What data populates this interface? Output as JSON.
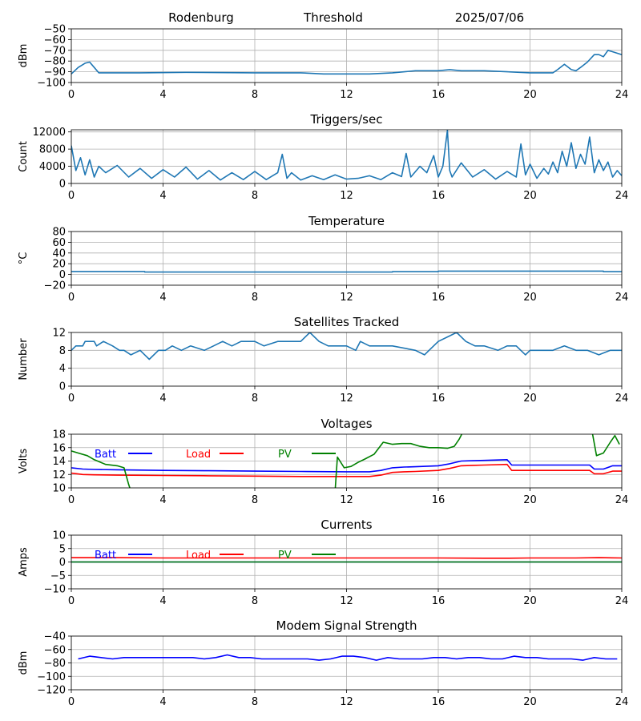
{
  "header": {
    "site": "Rodenburg",
    "mode": "Threshold",
    "date": "2025/07/06"
  },
  "colors": {
    "default_line": "#1f77b4",
    "batt": "#0000ff",
    "load": "#ff0000",
    "pv": "#008000",
    "grid": "#b0b0b0"
  },
  "chart_data": [
    {
      "id": "signal",
      "type": "line",
      "title": "",
      "ylabel": "dBm",
      "xlim": [
        0,
        24
      ],
      "ylim": [
        -100,
        -50
      ],
      "xticks": [
        0,
        4,
        8,
        12,
        16,
        20,
        24
      ],
      "xtick_labels": [
        "0",
        "4",
        "8",
        "12",
        "16",
        "20",
        "24"
      ],
      "yticks": [
        -100,
        -90,
        -80,
        -70,
        -60,
        -50
      ],
      "ytick_labels": [
        "−100",
        "−90",
        "−80",
        "−70",
        "−60",
        "−50"
      ],
      "grid": true,
      "series": [
        {
          "color": "#1f77b4",
          "x": [
            0,
            0.3,
            0.6,
            0.8,
            1.0,
            1.2,
            1.5,
            3,
            5,
            8,
            10,
            11,
            12,
            13,
            14,
            15,
            16,
            16.5,
            17,
            18,
            19,
            20,
            21,
            21.2,
            21.5,
            21.8,
            22,
            22.2,
            22.5,
            22.8,
            23.0,
            23.2,
            23.4,
            23.7,
            24
          ],
          "y": [
            -92,
            -86,
            -82,
            -81,
            -86,
            -91,
            -91,
            -91,
            -90.5,
            -91,
            -91,
            -92,
            -92,
            -92,
            -91,
            -89,
            -89,
            -88,
            -89,
            -89,
            -90,
            -91,
            -91,
            -88,
            -83,
            -88,
            -89,
            -86,
            -81,
            -74,
            -74,
            -76,
            -70,
            -72,
            -74
          ]
        }
      ]
    },
    {
      "id": "triggers",
      "type": "line",
      "title": "Triggers/sec",
      "ylabel": "Count",
      "xlim": [
        0,
        24
      ],
      "ylim": [
        0,
        12500
      ],
      "xticks": [
        0,
        4,
        8,
        12,
        16,
        20,
        24
      ],
      "xtick_labels": [
        "0",
        "4",
        "8",
        "12",
        "16",
        "20",
        "24"
      ],
      "yticks": [
        0,
        4000,
        8000,
        12000
      ],
      "ytick_labels": [
        "0",
        "4000",
        "8000",
        "12000"
      ],
      "grid": true,
      "series": [
        {
          "color": "#1f77b4",
          "x": [
            0,
            0.2,
            0.4,
            0.6,
            0.8,
            1.0,
            1.2,
            1.5,
            2,
            2.5,
            3,
            3.5,
            4,
            4.5,
            5,
            5.5,
            6,
            6.5,
            7,
            7.5,
            8,
            8.5,
            9,
            9.2,
            9.4,
            9.6,
            10,
            10.5,
            11,
            11.5,
            12,
            12.5,
            13,
            13.5,
            14,
            14.4,
            14.6,
            14.8,
            15.2,
            15.5,
            15.8,
            16,
            16.2,
            16.4,
            16.5,
            16.6,
            17,
            17.5,
            18,
            18.5,
            19,
            19.4,
            19.6,
            19.8,
            20,
            20.3,
            20.6,
            20.8,
            21,
            21.2,
            21.4,
            21.6,
            21.8,
            22.0,
            22.2,
            22.4,
            22.6,
            22.8,
            23.0,
            23.2,
            23.4,
            23.6,
            23.8,
            24
          ],
          "y": [
            8800,
            3000,
            6000,
            2000,
            5500,
            1500,
            4000,
            2500,
            4200,
            1500,
            3500,
            1200,
            3200,
            1500,
            3800,
            1000,
            3000,
            800,
            2500,
            900,
            2800,
            900,
            2500,
            6800,
            1200,
            2500,
            800,
            1800,
            900,
            2000,
            1000,
            1200,
            1800,
            900,
            2500,
            1600,
            7000,
            1500,
            4000,
            2500,
            6500,
            1500,
            4000,
            12400,
            3000,
            1500,
            4800,
            1500,
            3200,
            1000,
            2800,
            1500,
            9200,
            2000,
            4500,
            1200,
            3500,
            2200,
            5000,
            2500,
            7500,
            4000,
            9500,
            3500,
            6800,
            4500,
            10800,
            2500,
            5500,
            3000,
            5000,
            1500,
            3000,
            1800
          ]
        }
      ]
    },
    {
      "id": "temperature",
      "type": "line",
      "title": "Temperature",
      "ylabel": "°C",
      "xlim": [
        0,
        24
      ],
      "ylim": [
        -20,
        80
      ],
      "xticks": [
        0,
        4,
        8,
        12,
        16,
        20,
        24
      ],
      "xtick_labels": [
        "0",
        "4",
        "8",
        "12",
        "16",
        "20",
        "24"
      ],
      "yticks": [
        -20,
        0,
        20,
        40,
        60,
        80
      ],
      "ytick_labels": [
        "−20",
        "0",
        "20",
        "40",
        "60",
        "80"
      ],
      "grid": true,
      "series": [
        {
          "color": "#1f77b4",
          "x": [
            0,
            3.2,
            3.2,
            14,
            14,
            16,
            16,
            23.2,
            23.2,
            24
          ],
          "y": [
            5.5,
            5.5,
            4.5,
            4.5,
            5.2,
            5.2,
            6.2,
            6.2,
            5.2,
            5.2
          ]
        }
      ]
    },
    {
      "id": "satellites",
      "type": "line",
      "title": "Satellites Tracked",
      "ylabel": "Number",
      "xlim": [
        0,
        24
      ],
      "ylim": [
        0,
        12
      ],
      "xticks": [
        0,
        4,
        8,
        12,
        16,
        20,
        24
      ],
      "xtick_labels": [
        "0",
        "4",
        "8",
        "12",
        "16",
        "20",
        "24"
      ],
      "yticks": [
        0,
        4,
        8,
        12
      ],
      "ytick_labels": [
        "0",
        "4",
        "8",
        "12"
      ],
      "grid": true,
      "series": [
        {
          "color": "#1f77b4",
          "x": [
            0,
            0.2,
            0.5,
            0.6,
            1.0,
            1.1,
            1.4,
            1.8,
            2.1,
            2.3,
            2.6,
            3.0,
            3.2,
            3.4,
            3.8,
            4.1,
            4.4,
            4.8,
            5.2,
            5.8,
            6.2,
            6.6,
            7.0,
            7.4,
            8.0,
            8.4,
            9.0,
            9.6,
            10.0,
            10.4,
            10.8,
            11.2,
            11.6,
            12.0,
            12.4,
            12.6,
            13.0,
            13.6,
            14.0,
            15.0,
            15.4,
            15.6,
            16.0,
            16.4,
            16.8,
            17.2,
            17.6,
            18.0,
            18.6,
            19.0,
            19.4,
            19.8,
            20.0,
            20.5,
            21.0,
            21.5,
            22.0,
            22.5,
            23.0,
            23.5,
            24
          ],
          "y": [
            8,
            9,
            9,
            10,
            10,
            9,
            10,
            9,
            8,
            8,
            7,
            8,
            7,
            6,
            8,
            8,
            9,
            8,
            9,
            8,
            9,
            10,
            9,
            10,
            10,
            9,
            10,
            10,
            10,
            12,
            10,
            9,
            9,
            9,
            8,
            10,
            9,
            9,
            9,
            8,
            7,
            8,
            10,
            11,
            12,
            10,
            9,
            9,
            8,
            9,
            9,
            7,
            8,
            8,
            8,
            9,
            8,
            8,
            7,
            8,
            8
          ]
        }
      ]
    },
    {
      "id": "voltages",
      "type": "line",
      "title": "Voltages",
      "ylabel": "Volts",
      "xlim": [
        0,
        24
      ],
      "ylim": [
        10,
        18
      ],
      "xticks": [
        0,
        4,
        8,
        12,
        16,
        20,
        24
      ],
      "xtick_labels": [
        "0",
        "4",
        "8",
        "12",
        "16",
        "20",
        "24"
      ],
      "yticks": [
        10,
        12,
        14,
        16,
        18
      ],
      "ytick_labels": [
        "10",
        "12",
        "14",
        "16",
        "18"
      ],
      "grid": true,
      "legend": "top-left",
      "series": [
        {
          "name": "Batt",
          "color": "#0000ff",
          "x": [
            0,
            0.5,
            1,
            2,
            4,
            6,
            8,
            10,
            12,
            13,
            13.5,
            14,
            14.5,
            15,
            16,
            16.5,
            17,
            17.5,
            18,
            19,
            19.2,
            20,
            21,
            22,
            22.6,
            22.8,
            23.2,
            23.6,
            24
          ],
          "y": [
            13.0,
            12.8,
            12.75,
            12.7,
            12.6,
            12.55,
            12.5,
            12.45,
            12.4,
            12.4,
            12.6,
            13.0,
            13.1,
            13.15,
            13.3,
            13.6,
            14.0,
            14.05,
            14.1,
            14.2,
            13.4,
            13.4,
            13.4,
            13.4,
            13.4,
            12.8,
            12.8,
            13.3,
            13.3
          ]
        },
        {
          "name": "Load",
          "color": "#ff0000",
          "x": [
            0,
            0.5,
            1,
            2,
            4,
            6,
            8,
            10,
            12,
            13,
            13.5,
            14,
            14.5,
            15,
            16,
            16.5,
            17,
            17.5,
            18,
            19,
            19.2,
            20,
            21,
            22,
            22.6,
            22.8,
            23.2,
            23.6,
            24
          ],
          "y": [
            12.2,
            12.0,
            11.95,
            11.9,
            11.85,
            11.8,
            11.75,
            11.7,
            11.7,
            11.7,
            11.9,
            12.3,
            12.4,
            12.45,
            12.6,
            12.9,
            13.3,
            13.35,
            13.4,
            13.5,
            12.6,
            12.6,
            12.6,
            12.6,
            12.6,
            12.1,
            12.1,
            12.5,
            12.5
          ]
        },
        {
          "name": "PV",
          "color": "#008000",
          "x": [
            0,
            0.3,
            0.7,
            1.0,
            1.5,
            2.0,
            2.3,
            2.5,
            2.6,
            11.5,
            11.6,
            11.9,
            12.2,
            12.5,
            12.8,
            13.2,
            13.6,
            14.0,
            14.4,
            14.8,
            15.2,
            15.6,
            16.0,
            16.4,
            16.7,
            16.9,
            17.1,
            22.7,
            22.9,
            23.2,
            23.5,
            23.7,
            23.9
          ],
          "y": [
            15.5,
            15.2,
            14.8,
            14.2,
            13.5,
            13.3,
            13.0,
            10.5,
            9.5,
            9.5,
            14.6,
            13.0,
            13.2,
            13.8,
            14.3,
            15.0,
            16.8,
            16.5,
            16.6,
            16.6,
            16.2,
            16.0,
            16.0,
            15.9,
            16.2,
            17.2,
            18.5,
            18.5,
            14.8,
            15.2,
            16.8,
            17.8,
            16.5
          ]
        }
      ]
    },
    {
      "id": "currents",
      "type": "line",
      "title": "Currents",
      "ylabel": "Amps",
      "xlim": [
        0,
        24
      ],
      "ylim": [
        -10,
        10
      ],
      "xticks": [
        0,
        4,
        8,
        12,
        16,
        20,
        24
      ],
      "xtick_labels": [
        "0",
        "4",
        "8",
        "12",
        "16",
        "20",
        "24"
      ],
      "yticks": [
        -10,
        -5,
        0,
        5,
        10
      ],
      "ytick_labels": [
        "−10",
        "−5",
        "0",
        "5",
        "10"
      ],
      "grid": true,
      "legend": "top-left",
      "series": [
        {
          "name": "Batt",
          "color": "#0000ff",
          "x": [
            0,
            24
          ],
          "y": [
            0,
            0
          ]
        },
        {
          "name": "Load",
          "color": "#ff0000",
          "x": [
            0,
            2,
            4,
            8,
            12,
            16,
            18,
            19,
            20,
            22,
            23,
            24
          ],
          "y": [
            1.6,
            1.6,
            1.5,
            1.5,
            1.5,
            1.5,
            1.4,
            1.4,
            1.5,
            1.5,
            1.6,
            1.5
          ]
        },
        {
          "name": "PV",
          "color": "#008000",
          "x": [
            0,
            24
          ],
          "y": [
            0,
            0
          ]
        }
      ]
    },
    {
      "id": "modem",
      "type": "line",
      "title": "Modem Signal Strength",
      "ylabel": "dBm",
      "xlim": [
        0,
        24
      ],
      "ylim": [
        -120,
        -40
      ],
      "xticks": [
        0,
        4,
        8,
        12,
        16,
        20,
        24
      ],
      "xtick_labels": [
        "0",
        "4",
        "8",
        "12",
        "16",
        "20",
        "24"
      ],
      "yticks": [
        -120,
        -100,
        -80,
        -60,
        -40
      ],
      "ytick_labels": [
        "−120",
        "−100",
        "−80",
        "−60",
        "−40"
      ],
      "grid": true,
      "series": [
        {
          "color": "#0000ff",
          "x": [
            0.3,
            0.8,
            1.3,
            1.8,
            2.3,
            2.8,
            3.3,
            3.8,
            4.3,
            4.8,
            5.3,
            5.8,
            6.3,
            6.8,
            7.3,
            7.8,
            8.3,
            8.8,
            9.3,
            9.8,
            10.3,
            10.8,
            11.3,
            11.8,
            12.3,
            12.8,
            13.3,
            13.8,
            14.3,
            14.8,
            15.3,
            15.8,
            16.3,
            16.8,
            17.3,
            17.8,
            18.3,
            18.8,
            19.3,
            19.8,
            20.3,
            20.8,
            21.3,
            21.8,
            22.3,
            22.8,
            23.3,
            23.8
          ],
          "y": [
            -74,
            -70,
            -72,
            -74,
            -72,
            -72,
            -72,
            -72,
            -72,
            -72,
            -72,
            -74,
            -72,
            -68,
            -72,
            -72,
            -74,
            -74,
            -74,
            -74,
            -74,
            -76,
            -74,
            -70,
            -70,
            -72,
            -76,
            -72,
            -74,
            -74,
            -74,
            -72,
            -72,
            -74,
            -72,
            -72,
            -74,
            -74,
            -70,
            -72,
            -72,
            -74,
            -74,
            -74,
            -76,
            -72,
            -74,
            -74
          ]
        }
      ]
    }
  ]
}
